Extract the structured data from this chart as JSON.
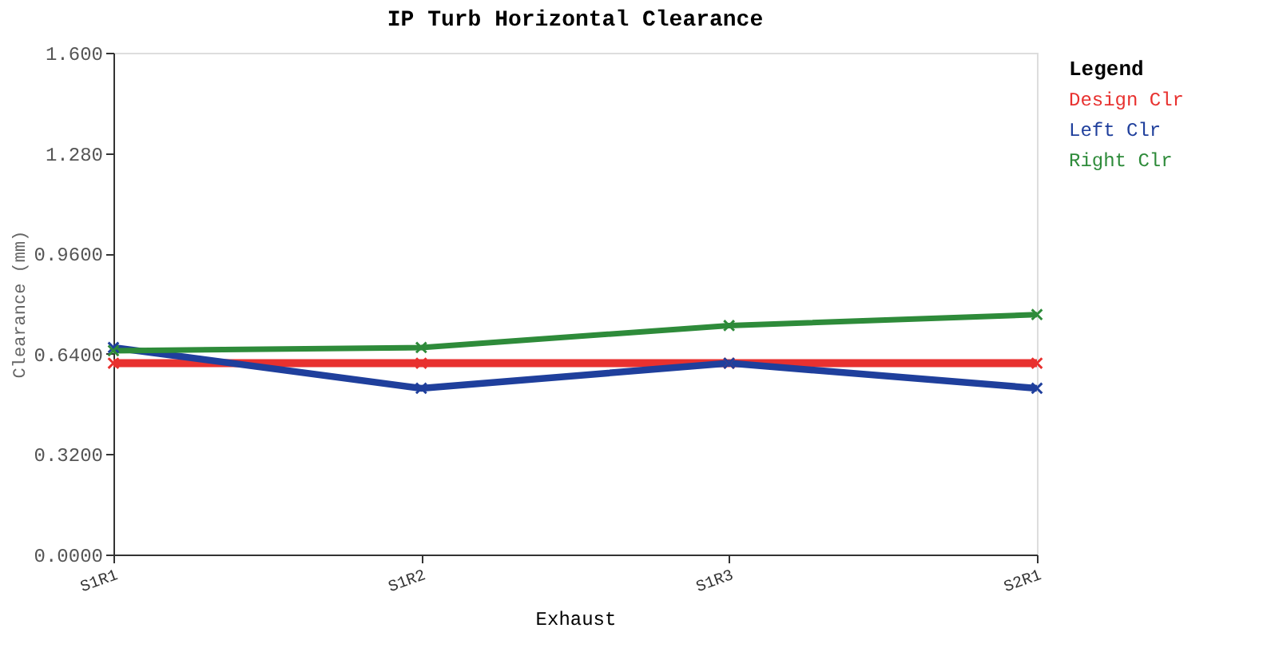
{
  "chart_data": {
    "type": "line",
    "title": "IP Turb Horizontal Clearance",
    "xlabel": "Exhaust",
    "ylabel": "Clearance (mm)",
    "legend_title": "Legend",
    "categories": [
      "S1R1",
      "S1R2",
      "S1R3",
      "S2R1"
    ],
    "series": [
      {
        "name": "Design Clr",
        "color": "#e8312f",
        "values": [
          0.61,
          0.61,
          0.61,
          0.61
        ]
      },
      {
        "name": "Left Clr",
        "color": "#1f3f9c",
        "values": [
          0.66,
          0.53,
          0.61,
          0.53
        ]
      },
      {
        "name": "Right Clr",
        "color": "#2e8b3a",
        "values": [
          0.65,
          0.66,
          0.73,
          0.765
        ]
      }
    ],
    "ylim": [
      0,
      1.6
    ],
    "yticks": [
      {
        "value": 0,
        "label": "0.0000"
      },
      {
        "value": 0.32,
        "label": "0.3200"
      },
      {
        "value": 0.64,
        "label": "0.6400"
      },
      {
        "value": 0.96,
        "label": "0.9600"
      },
      {
        "value": 1.28,
        "label": "1.280"
      },
      {
        "value": 1.6,
        "label": "1.600"
      }
    ],
    "grid": false,
    "legend": "top right",
    "marker": "cross",
    "line_style": "solid"
  }
}
